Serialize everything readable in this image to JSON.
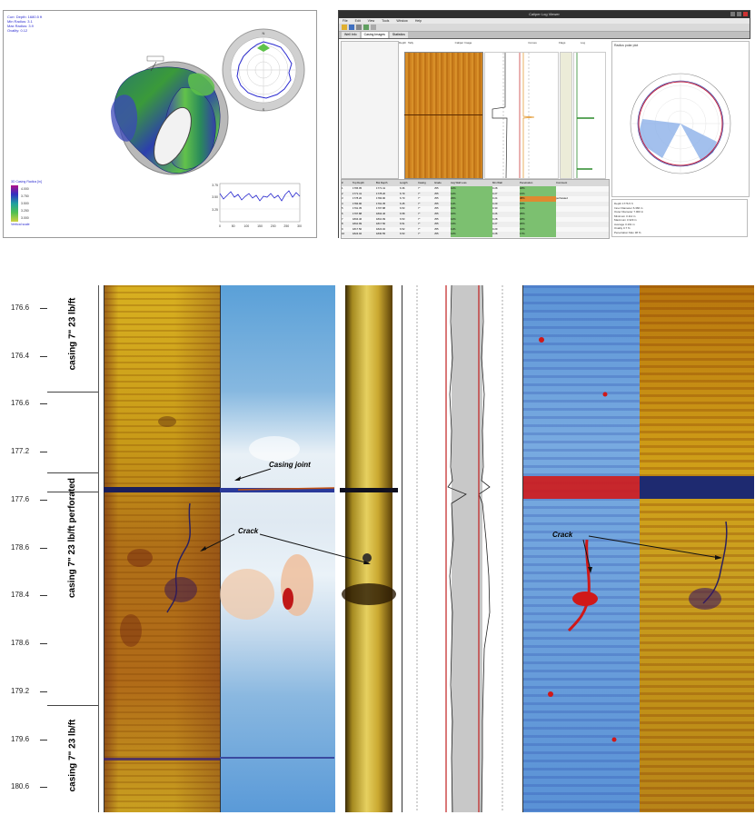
{
  "viewer3d": {
    "info_lines": [
      "Curr. Depth: 1680.5 ft",
      "Min Radius: 3.1",
      "Max Radius: 3.9",
      "Ovality: 0.12"
    ],
    "legend_title": "3D Casing Radius [in]",
    "legend_values": [
      "4.000",
      "3.750",
      "3.500",
      "3.250",
      "3.000"
    ],
    "legend_footer": "Vertical scale",
    "polar_top_label": "N",
    "polar_bottom_label": "S",
    "mini_chart_ticks": [
      "0",
      "50",
      "100",
      "150",
      "200",
      "250",
      "300"
    ],
    "mini_chart_y": [
      "3.75",
      "3.50",
      "3.25"
    ]
  },
  "app": {
    "title": "Caliper Log Viewer",
    "menu": [
      "File",
      "Edit",
      "View",
      "Tools",
      "Window",
      "Help"
    ],
    "tabs": [
      "Well Info",
      "Casing Images",
      "Statistics"
    ],
    "track_headers": [
      "Depth",
      "Tally",
      "Caliper Image",
      "Curves",
      "Flags",
      "Log"
    ],
    "polar_header": "Radius polar plot",
    "table_headers": [
      "#",
      "Top Depth",
      "Bot Depth",
      "Length",
      "Casing",
      "Grade",
      "Avg Wall Loss",
      "Min Wall",
      "Penetration",
      "Comment"
    ],
    "table_rows": [
      [
        "1",
        "1765.05",
        "1771.41",
        "6.36",
        "7\"",
        "J55",
        "12%",
        "0.28",
        "18%",
        ""
      ],
      [
        "2",
        "1771.41",
        "1778.20",
        "6.79",
        "7\"",
        "J55",
        "14%",
        "0.27",
        "21%",
        ""
      ],
      [
        "3",
        "1778.20",
        "1784.90",
        "6.70",
        "7\"",
        "J55",
        "23%",
        "0.24",
        "38%",
        "perforated"
      ],
      [
        "4",
        "1784.90",
        "1791.35",
        "6.45",
        "7\"",
        "J55",
        "11%",
        "0.29",
        "15%",
        ""
      ],
      [
        "5",
        "1791.35",
        "1797.88",
        "6.53",
        "7\"",
        "J55",
        "10%",
        "0.30",
        "13%",
        ""
      ],
      [
        "6",
        "1797.88",
        "1804.46",
        "6.58",
        "7\"",
        "J55",
        "16%",
        "0.26",
        "25%",
        ""
      ],
      [
        "7",
        "1804.46",
        "1810.99",
        "6.53",
        "7\"",
        "J55",
        "12%",
        "0.28",
        "18%",
        ""
      ],
      [
        "8",
        "1810.99",
        "1817.50",
        "6.51",
        "7\"",
        "J55",
        "13%",
        "0.27",
        "20%",
        ""
      ],
      [
        "9",
        "1817.50",
        "1824.02",
        "6.52",
        "7\"",
        "J55",
        "11%",
        "0.29",
        "16%",
        ""
      ],
      [
        "10",
        "1824.02",
        "1830.55",
        "6.53",
        "7\"",
        "J55",
        "12%",
        "0.28",
        "17%",
        ""
      ]
    ],
    "stats": [
      [
        "Depth",
        "1776.5 ft"
      ],
      [
        "Inner Diameter",
        "6.366 in"
      ],
      [
        "Outer Diameter",
        "7.000 in"
      ],
      [
        "Minimum",
        "3.112 in"
      ],
      [
        "Maximum",
        "3.329 in"
      ],
      [
        "Average",
        "3.191 in"
      ],
      [
        "Ovality",
        "0.7 %"
      ],
      [
        "Penetration Max",
        "38 %"
      ],
      [
        "Penetration Avg",
        "14 %"
      ]
    ]
  },
  "log": {
    "depth_labels": [
      "176.6",
      "176.4",
      "176.6",
      "177.2",
      "177.6",
      "178.6",
      "178.4",
      "178.6",
      "179.2",
      "179.6",
      "180.6"
    ],
    "zones": [
      {
        "label": "casing 7\" 23 lb/ft"
      },
      {
        "label": "casing 7\" 23 lb/ft perforated"
      },
      {
        "label": "casing 7\" 23 lb/ft"
      }
    ],
    "annotations": {
      "casing_joint": "Casing joint",
      "crack_left": "Crack",
      "crack_right": "Crack"
    }
  }
}
